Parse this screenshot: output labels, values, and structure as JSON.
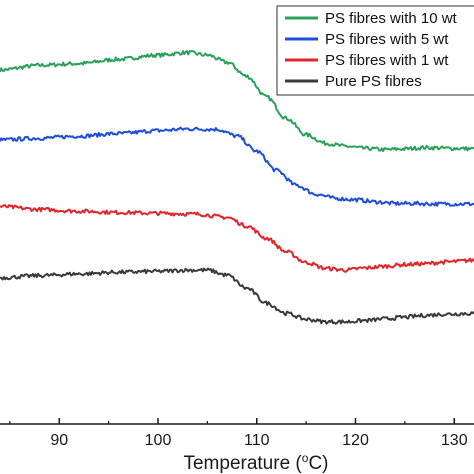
{
  "chart_data": {
    "type": "line",
    "xlabel": "Temperature (",
    "xlabel_unit_sup": "o",
    "xlabel_unit_tail": "C)",
    "ylabel": "",
    "xlim": [
      84,
      132
    ],
    "ylim": [
      0,
      100
    ],
    "x_ticks": [
      90,
      100,
      110,
      120,
      130
    ],
    "x_tick_labels": [
      "90",
      "100",
      "110",
      "120",
      "130"
    ],
    "grid": false,
    "legend_position": "top-right",
    "series": [
      {
        "name": "PS fibres with 10 wt",
        "color": "#2ca05a",
        "points": [
          [
            84,
            83.5
          ],
          [
            88,
            84.6
          ],
          [
            92,
            85.0
          ],
          [
            96,
            86.0
          ],
          [
            100,
            87.0
          ],
          [
            103,
            87.6
          ],
          [
            105,
            87.0
          ],
          [
            107,
            85.3
          ],
          [
            109,
            82.0
          ],
          [
            111,
            77.1
          ],
          [
            113,
            72.1
          ],
          [
            115,
            68.2
          ],
          [
            117,
            66.2
          ],
          [
            119,
            65.5
          ],
          [
            121,
            65.0
          ],
          [
            123,
            64.7
          ],
          [
            125,
            64.9
          ],
          [
            127,
            65.2
          ],
          [
            130,
            65.0
          ],
          [
            132,
            64.9
          ]
        ]
      },
      {
        "name": "PS fibres with 5 wt",
        "color": "#1f4fd8",
        "points": [
          [
            84,
            67.0
          ],
          [
            88,
            67.4
          ],
          [
            92,
            67.9
          ],
          [
            96,
            68.5
          ],
          [
            100,
            69.2
          ],
          [
            103,
            69.6
          ],
          [
            106,
            69.5
          ],
          [
            108,
            67.9
          ],
          [
            110,
            64.3
          ],
          [
            112,
            59.8
          ],
          [
            114,
            56.3
          ],
          [
            116,
            54.2
          ],
          [
            118,
            53.2
          ],
          [
            120,
            52.9
          ],
          [
            122,
            52.4
          ],
          [
            124,
            52.0
          ],
          [
            126,
            52.0
          ],
          [
            128,
            51.9
          ],
          [
            130,
            51.9
          ],
          [
            132,
            51.9
          ]
        ]
      },
      {
        "name": "PS fibres with 1 wt",
        "color": "#e0262b",
        "points": [
          [
            84,
            51.3
          ],
          [
            88,
            50.6
          ],
          [
            92,
            50.2
          ],
          [
            96,
            49.9
          ],
          [
            100,
            49.7
          ],
          [
            104,
            49.5
          ],
          [
            107,
            48.7
          ],
          [
            109,
            46.7
          ],
          [
            111,
            43.8
          ],
          [
            113,
            40.6
          ],
          [
            115,
            38.1
          ],
          [
            117,
            36.7
          ],
          [
            119,
            36.3
          ],
          [
            121,
            36.8
          ],
          [
            123,
            37.2
          ],
          [
            125,
            37.6
          ],
          [
            127,
            37.8
          ],
          [
            129,
            38.2
          ],
          [
            132,
            38.6
          ]
        ]
      },
      {
        "name": "Pure PS fibres",
        "color": "#3a3a3a",
        "points": [
          [
            84,
            34.5
          ],
          [
            88,
            35.0
          ],
          [
            92,
            35.4
          ],
          [
            96,
            35.8
          ],
          [
            100,
            36.0
          ],
          [
            103,
            36.3
          ],
          [
            105,
            36.3
          ],
          [
            107,
            35.1
          ],
          [
            109,
            32.0
          ],
          [
            111,
            28.5
          ],
          [
            113,
            26.1
          ],
          [
            115,
            24.7
          ],
          [
            117,
            24.1
          ],
          [
            119,
            24.1
          ],
          [
            121,
            24.4
          ],
          [
            123,
            24.8
          ],
          [
            125,
            25.2
          ],
          [
            127,
            25.6
          ],
          [
            129,
            25.9
          ],
          [
            132,
            26.1
          ]
        ]
      }
    ]
  }
}
